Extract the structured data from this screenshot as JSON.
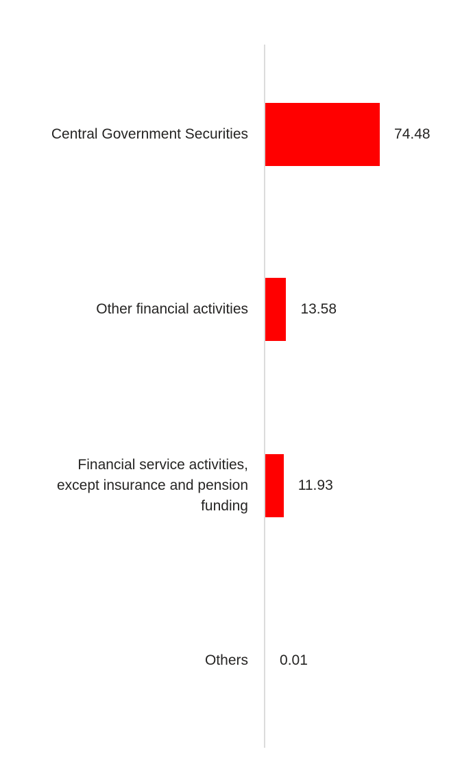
{
  "chart_data": {
    "type": "bar",
    "orientation": "horizontal",
    "title": "",
    "xlabel": "",
    "ylabel": "",
    "grid": false,
    "legend": false,
    "xlim": [
      0,
      80
    ],
    "categories": [
      "Central Government Securities",
      "Other financial activities",
      "Financial service activities, except insurance and pension funding",
      "Others"
    ],
    "categories_wrapped": [
      "Central Government Securities",
      "Other financial activities",
      "Financial service activities,\nexcept insurance and pension\nfunding",
      "Others"
    ],
    "values": [
      74.48,
      13.58,
      11.93,
      0.01
    ],
    "value_labels": [
      "74.48",
      "13.58",
      "11.93",
      "0.01"
    ],
    "bar_color": "#ff0000",
    "axis_line_color": "#dbdbdb",
    "text_color": "#252423",
    "background_color": "#ffffff"
  }
}
